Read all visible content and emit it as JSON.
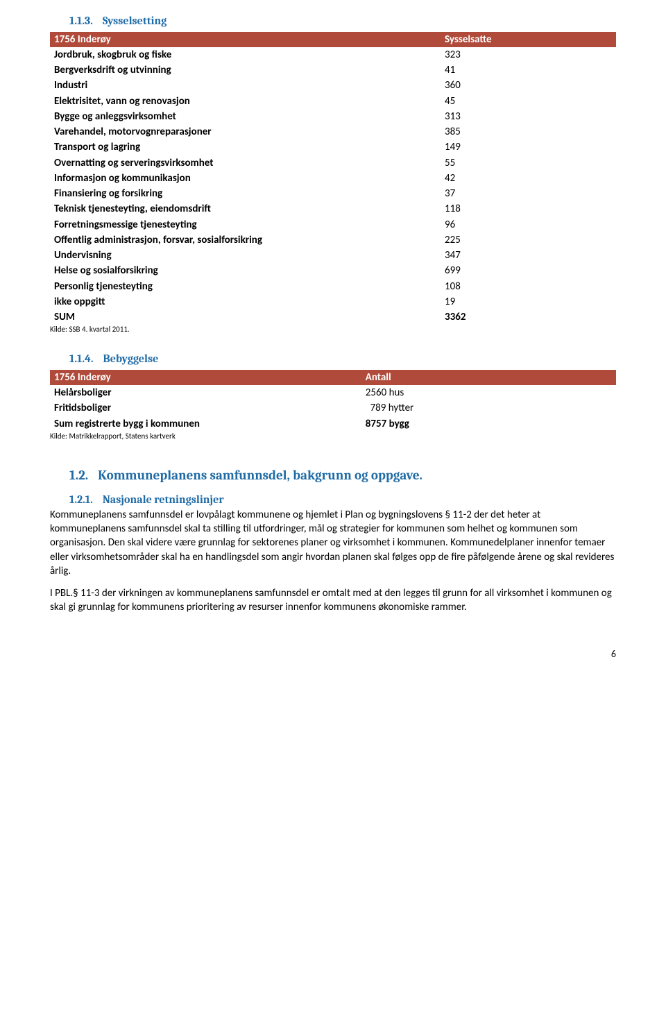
{
  "section1": {
    "num": "1.1.3.",
    "title": "Sysselsetting"
  },
  "table1": {
    "header": {
      "col1": "1756 Inderøy",
      "col2": "Sysselsatte"
    },
    "rows": [
      {
        "label": "Jordbruk, skogbruk og fiske",
        "value": "323"
      },
      {
        "label": "Bergverksdrift og utvinning",
        "value": "41"
      },
      {
        "label": "Industri",
        "value": "360"
      },
      {
        "label": "Elektrisitet, vann og renovasjon",
        "value": "45"
      },
      {
        "label": "Bygge og anleggsvirksomhet",
        "value": "313"
      },
      {
        "label": "Varehandel, motorvognreparasjoner",
        "value": "385"
      },
      {
        "label": "Transport og lagring",
        "value": "149"
      },
      {
        "label": "Overnatting og serveringsvirksomhet",
        "value": "55"
      },
      {
        "label": "Informasjon og kommunikasjon",
        "value": "42"
      },
      {
        "label": "Finansiering og forsikring",
        "value": "37"
      },
      {
        "label": "Teknisk tjenesteyting, eiendomsdrift",
        "value": "118"
      },
      {
        "label": "Forretningsmessige tjenesteyting",
        "value": "96"
      },
      {
        "label": "Offentlig administrasjon, forsvar, sosialforsikring",
        "value": "225"
      },
      {
        "label": "Undervisning",
        "value": "347"
      },
      {
        "label": "Helse og sosialforsikring",
        "value": "699"
      },
      {
        "label": "Personlig tjenesteyting",
        "value": "108"
      },
      {
        "label": "ikke oppgitt",
        "value": "19"
      }
    ],
    "sum": {
      "label": "SUM",
      "value": "3362"
    },
    "source": "Kilde: SSB 4. kvartal 2011."
  },
  "section2": {
    "num": "1.1.4.",
    "title": "Bebyggelse"
  },
  "table2": {
    "header": {
      "col1": "1756 Inderøy",
      "col2": "Antall"
    },
    "rows": [
      {
        "label": "Helårsboliger",
        "value": "2560 hus"
      },
      {
        "label": "Fritidsboliger",
        "value": "  789 hytter"
      }
    ],
    "sum": {
      "label": "Sum registrerte bygg i kommunen",
      "value": "8757 bygg"
    },
    "source": "Kilde: Matrikkelrapport, Statens kartverk"
  },
  "section3": {
    "num": "1.2.",
    "title": "Kommuneplanens samfunnsdel, bakgrunn og oppgave."
  },
  "section4": {
    "num": "1.2.1.",
    "title": "Nasjonale retningslinjer"
  },
  "paragraphs": {
    "p1": "Kommuneplanens samfunnsdel er lovpålagt kommunene og hjemlet i Plan og bygningslovens § 11-2 der det heter at kommuneplanens samfunnsdel skal ta stilling til utfordringer, mål og strategier for kommunen som helhet og kommunen som organisasjon. Den skal videre være grunnlag for sektorenes planer og virksomhet i kommunen. Kommunedelplaner innenfor temaer eller virksomhetsområder skal ha en handlingsdel som angir hvordan planen skal følges opp de fire påfølgende årene og skal revideres årlig.",
    "p2": "I PBL.§ 11-3 der virkningen av kommuneplanens samfunnsdel er omtalt med at den legges til grunn for all virksomhet i kommunen og skal gi grunnlag for kommunens prioritering av resurser innenfor kommunens økonomiske rammer."
  },
  "pageNumber": "6",
  "colors": {
    "heading": "#1f6ba6",
    "tableHeaderBg": "#b04a3a",
    "tableHeaderText": "#ffffff"
  }
}
